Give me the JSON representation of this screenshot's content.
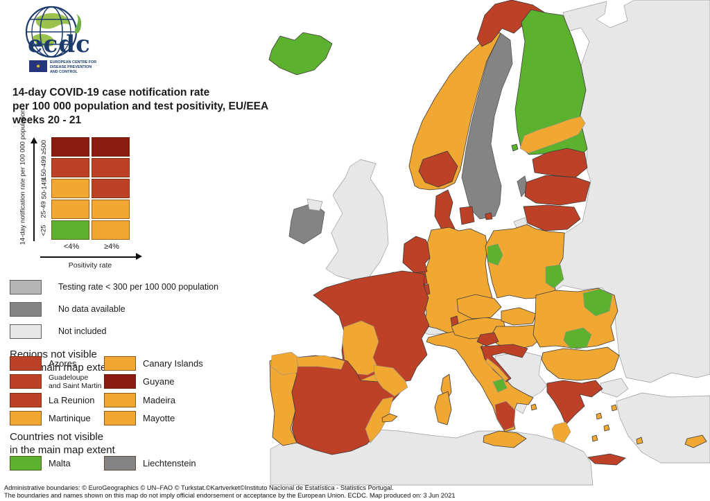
{
  "logo": {
    "brand": "ecdc",
    "org_lines": [
      "EUROPEAN CENTRE FOR",
      "DISEASE PREVENTION",
      "AND CONTROL"
    ]
  },
  "title": {
    "line1": "14-day COVID-19 case notification rate",
    "line2": "per 100 000 population and test positivity, EU/EEA",
    "line3": "weeks 20 - 21"
  },
  "matrix_legend": {
    "y_axis_label": "14-day notification rate per 100 000 population",
    "x_axis_label": "Positivity rate",
    "col_labels": [
      "<4%",
      "≥4%"
    ],
    "rows": [
      {
        "label": "≥500",
        "cells": [
          "darkred",
          "darkred"
        ]
      },
      {
        "label": "150-499",
        "cells": [
          "brick",
          "brick"
        ]
      },
      {
        "label": "50-149",
        "cells": [
          "orange",
          "brick"
        ]
      },
      {
        "label": "25-49",
        "cells": [
          "orange",
          "orange"
        ]
      },
      {
        "label": "<25",
        "cells": [
          "green",
          "orange"
        ]
      }
    ]
  },
  "status_legend": [
    {
      "color": "testing",
      "label": "Testing rate < 300 per 100 000 population"
    },
    {
      "color": "nodata",
      "label": "No data available"
    },
    {
      "color": "notincluded",
      "label": "Not included"
    }
  ],
  "regions_section": {
    "heading_line1": "Regions not visible",
    "heading_line2": "in the main map extent",
    "items": [
      {
        "color": "brick",
        "label": "Azores"
      },
      {
        "color": "orange",
        "label": "Canary Islands"
      },
      {
        "color": "brick",
        "label": "Guadeloupe\nand Saint Martin"
      },
      {
        "color": "darkred",
        "label": "Guyane"
      },
      {
        "color": "brick",
        "label": "La Reunion"
      },
      {
        "color": "orange",
        "label": "Madeira"
      },
      {
        "color": "orange",
        "label": "Martinique"
      },
      {
        "color": "orange",
        "label": "Mayotte"
      }
    ]
  },
  "countries_section": {
    "heading_line1": "Countries not visible",
    "heading_line2": "in the main map extent",
    "items": [
      {
        "color": "green",
        "label": "Malta"
      },
      {
        "color": "nodata",
        "label": "Liechtenstein"
      }
    ]
  },
  "footer": {
    "line1": "Administrative boundaries: © EuroGeographics © UN–FAO © Turkstat.©Kartverket©Instituto Nacional de Estatística - Statistics Portugal.",
    "line2": "The boundaries and names shown on this map do not imply official endorsement or acceptance by the European Union. ECDC. Map produced on: 3 Jun 2021"
  },
  "palette": {
    "green": "#5CB22F",
    "orange": "#F0A833",
    "brick": "#BD4127",
    "darkred": "#8B1B10",
    "testing": "#B5B5B5",
    "nodata": "#848484",
    "notincluded": "#E7E7E7",
    "sea": "#FFFFFF"
  },
  "map": {
    "regions": [
      {
        "id": "east-landmass",
        "color": "notincluded"
      },
      {
        "id": "north-africa",
        "color": "notincluded"
      },
      {
        "id": "turkey",
        "color": "notincluded"
      },
      {
        "id": "turkish-thrace",
        "color": "notincluded"
      },
      {
        "id": "uk",
        "color": "notincluded"
      },
      {
        "id": "northern-ireland",
        "color": "notincluded"
      },
      {
        "id": "ireland",
        "color": "nodata"
      },
      {
        "id": "switzerland",
        "color": "notincluded"
      },
      {
        "id": "kaliningrad",
        "color": "notincluded"
      },
      {
        "id": "western-balkans",
        "color": "notincluded"
      },
      {
        "id": "sweden",
        "color": "nodata"
      },
      {
        "id": "gotland",
        "color": "nodata"
      },
      {
        "id": "iceland",
        "color": "green"
      },
      {
        "id": "norway-coast",
        "color": "orange"
      },
      {
        "id": "norway-cap",
        "color": "brick"
      },
      {
        "id": "norway-north",
        "color": "brick"
      },
      {
        "id": "finland",
        "color": "green"
      },
      {
        "id": "finland-south",
        "color": "orange",
        "internal": true
      },
      {
        "id": "aland",
        "color": "green"
      },
      {
        "id": "estonia",
        "color": "brick"
      },
      {
        "id": "latvia",
        "color": "brick"
      },
      {
        "id": "lithuania",
        "color": "brick"
      },
      {
        "id": "denmark",
        "color": "brick"
      },
      {
        "id": "germany",
        "color": "orange"
      },
      {
        "id": "netherlands",
        "color": "brick"
      },
      {
        "id": "belgium",
        "color": "brick"
      },
      {
        "id": "luxembourg",
        "color": "brick"
      },
      {
        "id": "france",
        "color": "brick"
      },
      {
        "id": "nouvelle-aquitaine",
        "color": "orange",
        "internal": true
      },
      {
        "id": "languedoc",
        "color": "orange",
        "internal": true
      },
      {
        "id": "corsica",
        "color": "orange"
      },
      {
        "id": "vorarlberg",
        "color": "brick"
      },
      {
        "id": "portugal",
        "color": "orange"
      },
      {
        "id": "spain",
        "color": "brick"
      },
      {
        "id": "galicia",
        "color": "orange",
        "internal": true
      },
      {
        "id": "spain-north",
        "color": "orange",
        "internal": true
      },
      {
        "id": "aragon-catalonia",
        "color": "orange",
        "internal": true
      },
      {
        "id": "valencia-murcia",
        "color": "orange",
        "internal": true
      },
      {
        "id": "balearics",
        "color": "orange"
      },
      {
        "id": "italy",
        "color": "orange"
      },
      {
        "id": "molise",
        "color": "green",
        "internal": true
      },
      {
        "id": "calabria",
        "color": "brick",
        "internal": true
      },
      {
        "id": "sicily",
        "color": "orange"
      },
      {
        "id": "sardinia",
        "color": "orange"
      },
      {
        "id": "austria",
        "color": "orange"
      },
      {
        "id": "czechia",
        "color": "orange"
      },
      {
        "id": "slovakia",
        "color": "orange"
      },
      {
        "id": "hungary",
        "color": "orange"
      },
      {
        "id": "slovenia",
        "color": "brick"
      },
      {
        "id": "croatia",
        "color": "brick"
      },
      {
        "id": "croatia-coast",
        "color": "orange",
        "internal": true
      },
      {
        "id": "poland",
        "color": "orange"
      },
      {
        "id": "lubusz",
        "color": "green",
        "internal": true
      },
      {
        "id": "lublin",
        "color": "green",
        "internal": true
      },
      {
        "id": "romania",
        "color": "orange"
      },
      {
        "id": "romania-ne",
        "color": "green",
        "internal": true
      },
      {
        "id": "romania-centre",
        "color": "green",
        "internal": true
      },
      {
        "id": "bulgaria",
        "color": "orange"
      },
      {
        "id": "greece",
        "color": "brick"
      },
      {
        "id": "peloponnese",
        "color": "orange",
        "internal": true
      },
      {
        "id": "crete",
        "color": "brick"
      },
      {
        "id": "aegean-islands",
        "color": "orange"
      },
      {
        "id": "ionian-island",
        "color": "orange"
      },
      {
        "id": "cyprus",
        "color": "orange"
      }
    ]
  }
}
